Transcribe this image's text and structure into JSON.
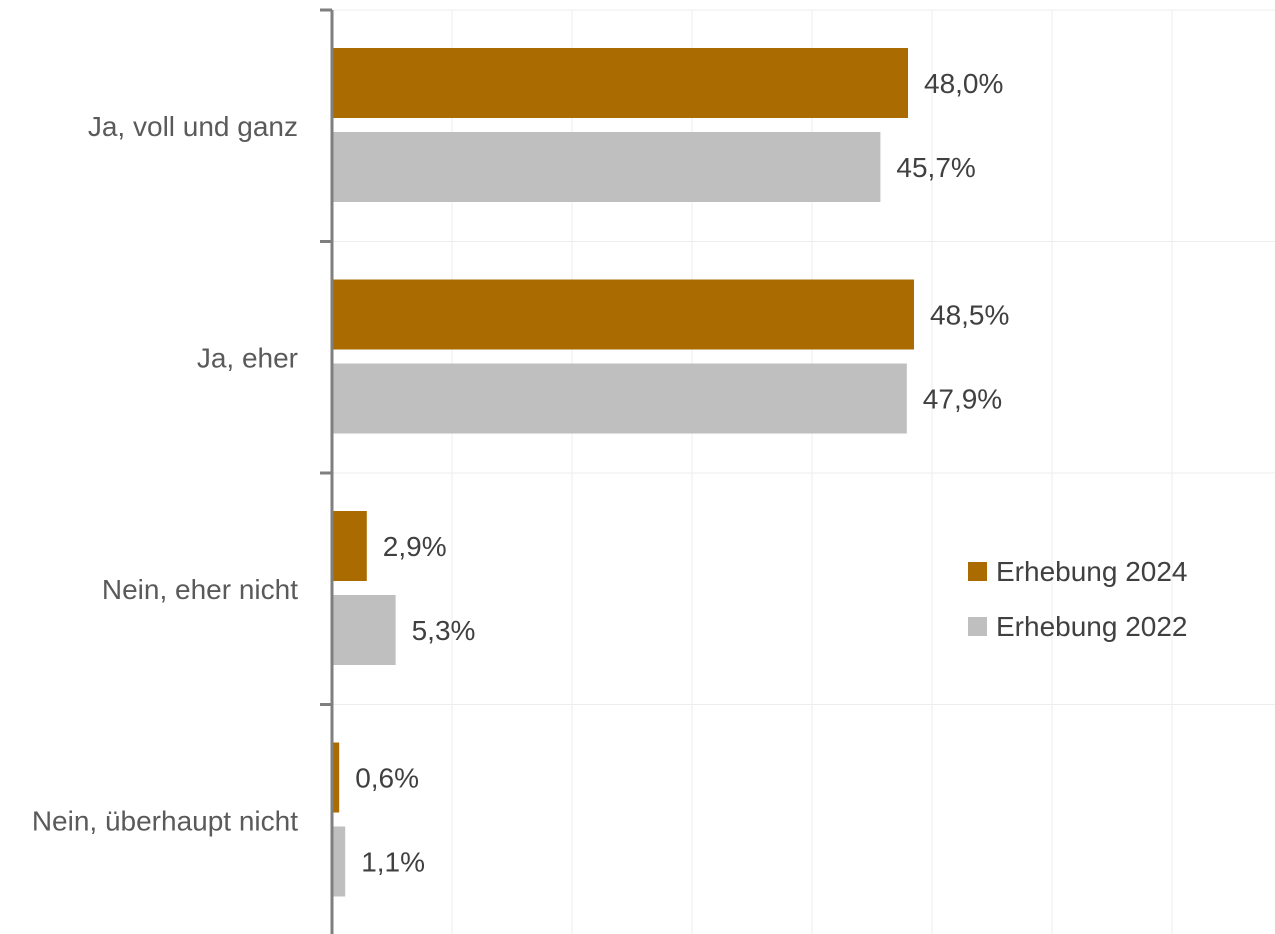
{
  "chart_data": {
    "type": "bar",
    "orientation": "horizontal",
    "categories": [
      "Ja, voll und ganz",
      "Ja, eher",
      "Nein, eher nicht",
      "Nein, überhaupt nicht"
    ],
    "series": [
      {
        "name": "Erhebung 2024",
        "color": "#AA6C00",
        "values": [
          48.0,
          48.5,
          2.9,
          0.6
        ],
        "labels": [
          "48,0%",
          "48,5%",
          "2,9%",
          "0,6%"
        ]
      },
      {
        "name": "Erhebung 2022",
        "color": "#BFBFBF",
        "values": [
          45.7,
          47.9,
          5.3,
          1.1
        ],
        "labels": [
          "45,7%",
          "47,9%",
          "5,3%",
          "1,1%"
        ]
      }
    ],
    "xlim": [
      0,
      80
    ],
    "grid": true,
    "legend_position": "right",
    "title": "",
    "xlabel": "",
    "ylabel": ""
  }
}
